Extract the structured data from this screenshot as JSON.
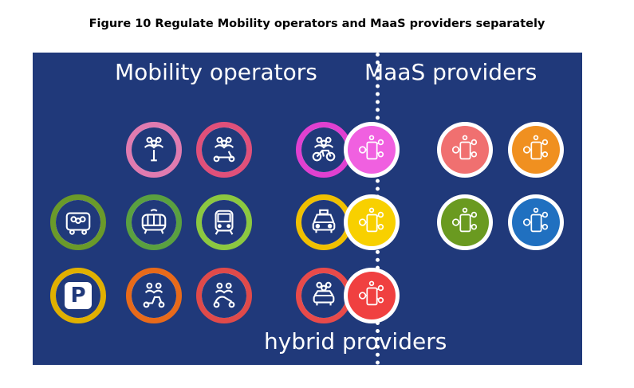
{
  "caption": "Figure 10 Regulate Mobility operators and MaaS providers separately",
  "labels": {
    "mobility_operators": "Mobility operators",
    "maas_providers": "MaaS providers",
    "hybrid_providers": "hybrid providers"
  },
  "mobility_icons": [
    {
      "name": "shared-scooter-icon",
      "color": "#e07bb0"
    },
    {
      "name": "shared-kickscooter-icon",
      "color": "#e0507a"
    },
    {
      "name": "bus-icon",
      "color": "#6a9a2a"
    },
    {
      "name": "tram-icon",
      "color": "#5aa040"
    },
    {
      "name": "metro-train-icon",
      "color": "#8cc840"
    },
    {
      "name": "parking-icon",
      "color": "#e0b000"
    },
    {
      "name": "shared-moped-icon",
      "color": "#e86a1a"
    },
    {
      "name": "shared-motorbike-icon",
      "color": "#e04a4a"
    }
  ],
  "hybrid_operator_icons": [
    {
      "name": "shared-bike-icon",
      "color": "#e040d0"
    },
    {
      "name": "taxi-icon",
      "color": "#f0c000"
    },
    {
      "name": "shared-car-icon",
      "color": "#e84a4a"
    }
  ],
  "maas_icons": [
    {
      "name": "maas-app-icon-magenta",
      "color": "#f060e0"
    },
    {
      "name": "maas-app-icon-yellow",
      "color": "#f8d000"
    },
    {
      "name": "maas-app-icon-red",
      "color": "#f04040"
    },
    {
      "name": "maas-app-icon-salmon",
      "color": "#f07070"
    },
    {
      "name": "maas-app-icon-orange",
      "color": "#f09020"
    },
    {
      "name": "maas-app-icon-green",
      "color": "#6a9a20"
    },
    {
      "name": "maas-app-icon-blue",
      "color": "#2070c0"
    }
  ],
  "symbols": {
    "parking": "P"
  }
}
